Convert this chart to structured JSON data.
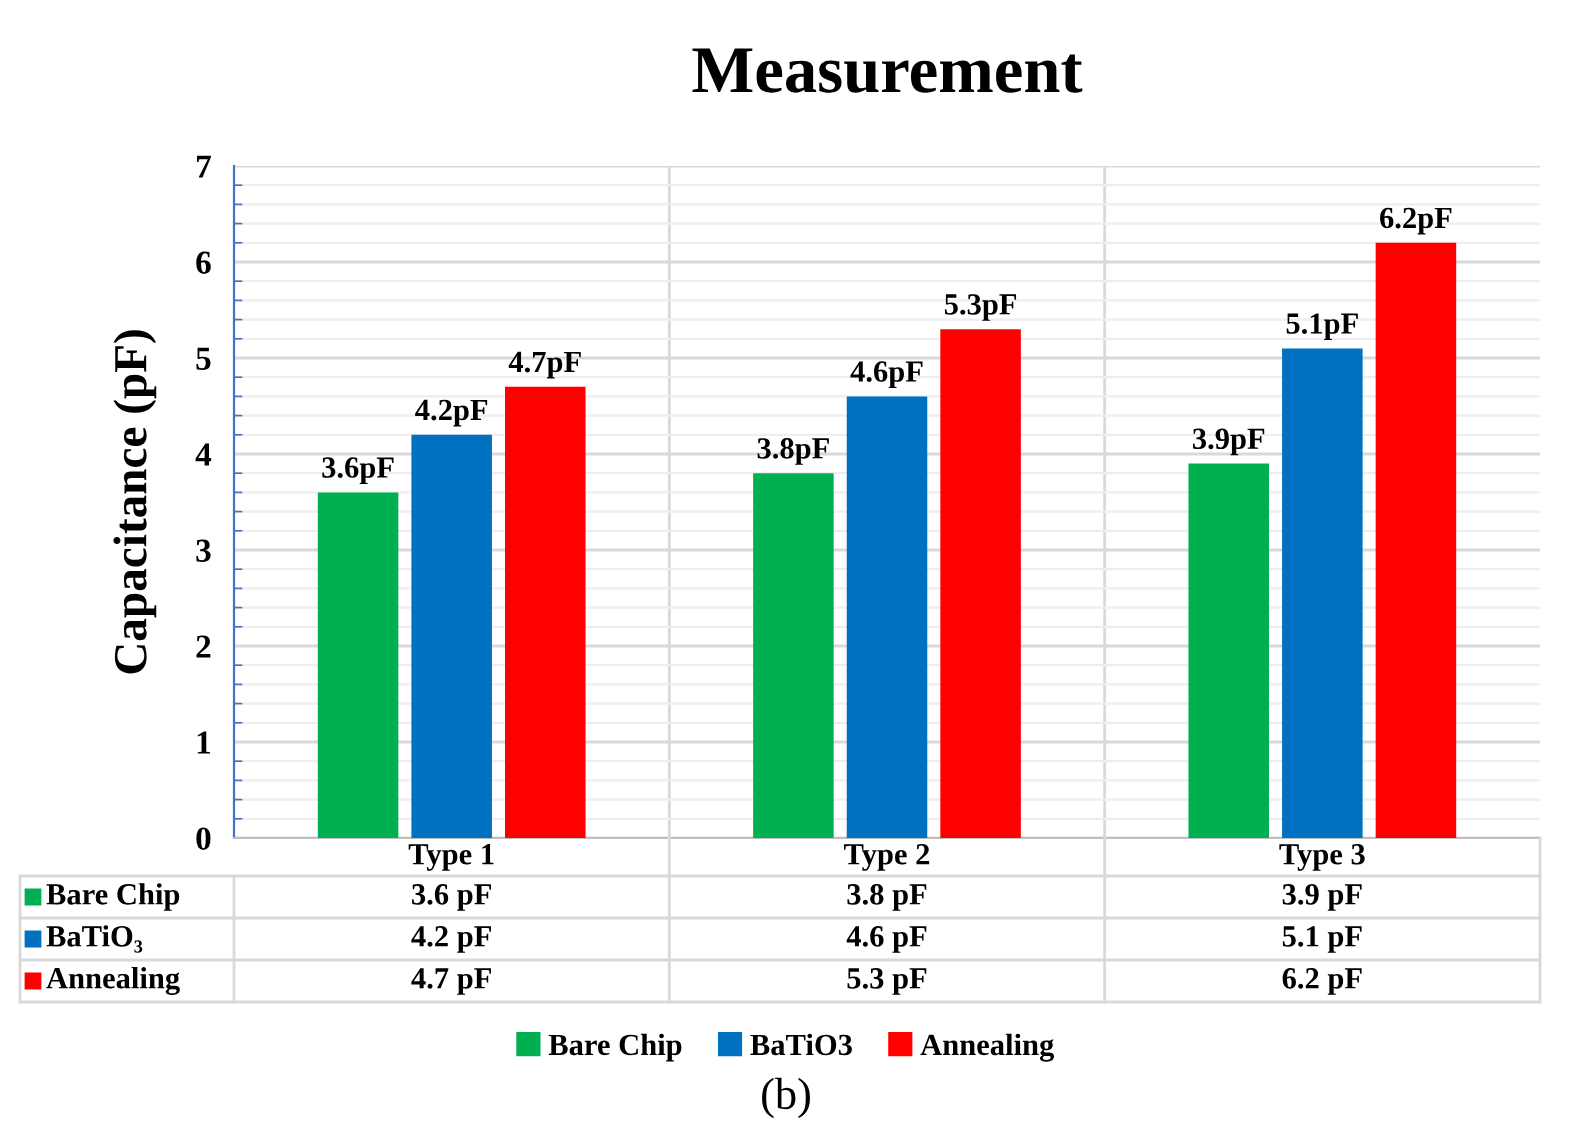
{
  "chart_data": {
    "type": "bar",
    "title": "Measurement",
    "ylabel": "Capacitance (pF)",
    "categories": [
      "Type 1",
      "Type 2",
      "Type 3"
    ],
    "series": [
      {
        "name": "Bare Chip",
        "color": "#00b050",
        "values": [
          3.6,
          3.8,
          3.9
        ],
        "value_labels": [
          "3.6pF",
          "3.8pF",
          "3.9pF"
        ]
      },
      {
        "name": "BaTiO3",
        "color": "#0070c0",
        "values": [
          4.2,
          4.6,
          5.1
        ],
        "value_labels": [
          "4.2pF",
          "4.6pF",
          "5.1pF"
        ]
      },
      {
        "name": "Annealing",
        "color": "#ff0000",
        "values": [
          4.7,
          5.3,
          6.2
        ],
        "value_labels": [
          "4.7pF",
          "5.3pF",
          "6.2pF"
        ]
      }
    ],
    "ylim": [
      0,
      7
    ],
    "yticks": [
      0,
      1,
      2,
      3,
      4,
      5,
      6,
      7
    ],
    "grid": "y",
    "legend": "bottom",
    "annotations": [
      "Bare Chip",
      "3.6 pF",
      "3.8 pF",
      "3.9 pF",
      "BaTiO₃",
      "4.2 pF",
      "4.6 pF",
      "5.1 pF",
      "Annealing",
      "4.7 pF",
      "5.3 pF",
      "6.2 pF",
      "(b)"
    ]
  }
}
